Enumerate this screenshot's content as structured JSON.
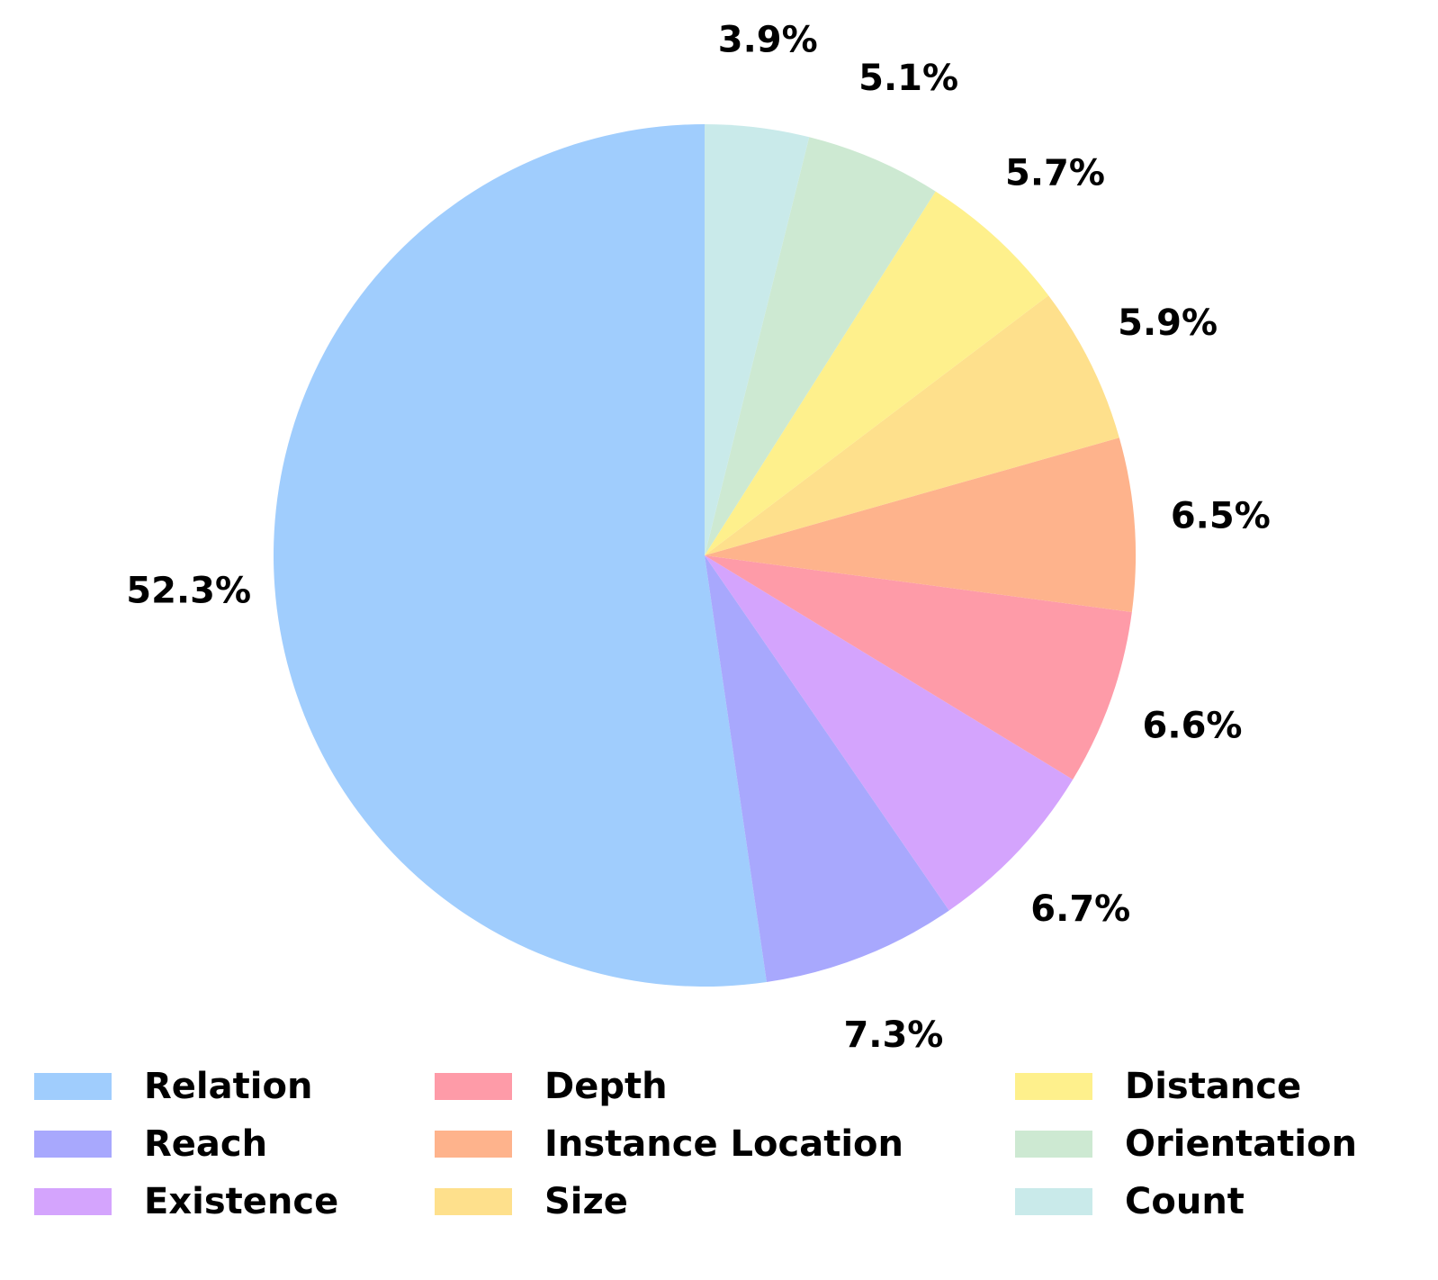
{
  "chart_data": {
    "type": "pie",
    "categories": [
      "Relation",
      "Reach",
      "Existence",
      "Depth",
      "Instance Location",
      "Size",
      "Distance",
      "Orientation",
      "Count"
    ],
    "values": [
      52.3,
      7.3,
      6.7,
      6.6,
      6.5,
      5.9,
      5.7,
      5.1,
      3.9
    ],
    "value_labels": [
      "52.3%",
      "7.3%",
      "6.7%",
      "6.6%",
      "6.5%",
      "5.9%",
      "5.7%",
      "5.1%",
      "3.9%"
    ],
    "colors": [
      "#a0cdfd",
      "#a8a8fd",
      "#d4a4fd",
      "#fe9ba8",
      "#feb38c",
      "#fee08c",
      "#fef08c",
      "#cde9d2",
      "#c9eaea"
    ],
    "legend": "bottom"
  }
}
